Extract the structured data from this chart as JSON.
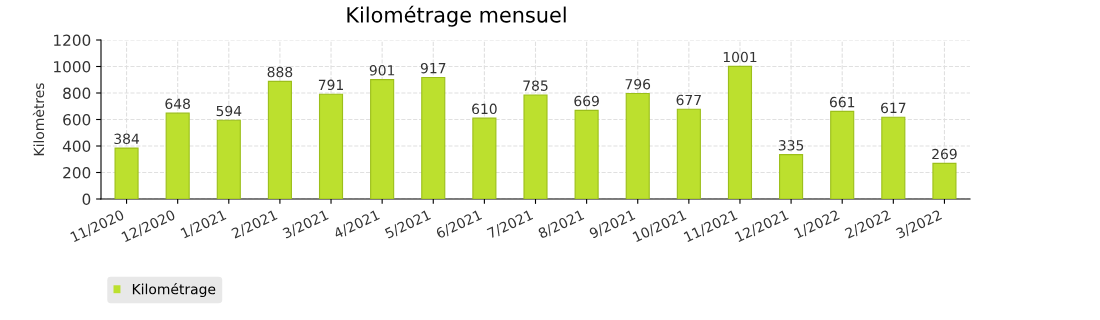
{
  "chart_data": {
    "type": "bar",
    "title": "Kilométrage mensuel",
    "ylabel": "Kilomètres",
    "categories": [
      "11/2020",
      "12/2020",
      "1/2021",
      "2/2021",
      "3/2021",
      "4/2021",
      "5/2021",
      "6/2021",
      "7/2021",
      "8/2021",
      "9/2021",
      "10/2021",
      "11/2021",
      "12/2021",
      "1/2022",
      "2/2022",
      "3/2022"
    ],
    "series": [
      {
        "name": "Kilométrage",
        "color": "#bce02e",
        "values": [
          384,
          648,
          594,
          888,
          791,
          901,
          917,
          610,
          785,
          669,
          796,
          677,
          1001,
          335,
          661,
          617,
          269
        ]
      }
    ],
    "ylim": [
      0,
      1200
    ],
    "yticks": [
      0,
      200,
      400,
      600,
      800,
      1000,
      1200
    ],
    "grid": true,
    "legend": "bottom left",
    "data_labels": true
  }
}
